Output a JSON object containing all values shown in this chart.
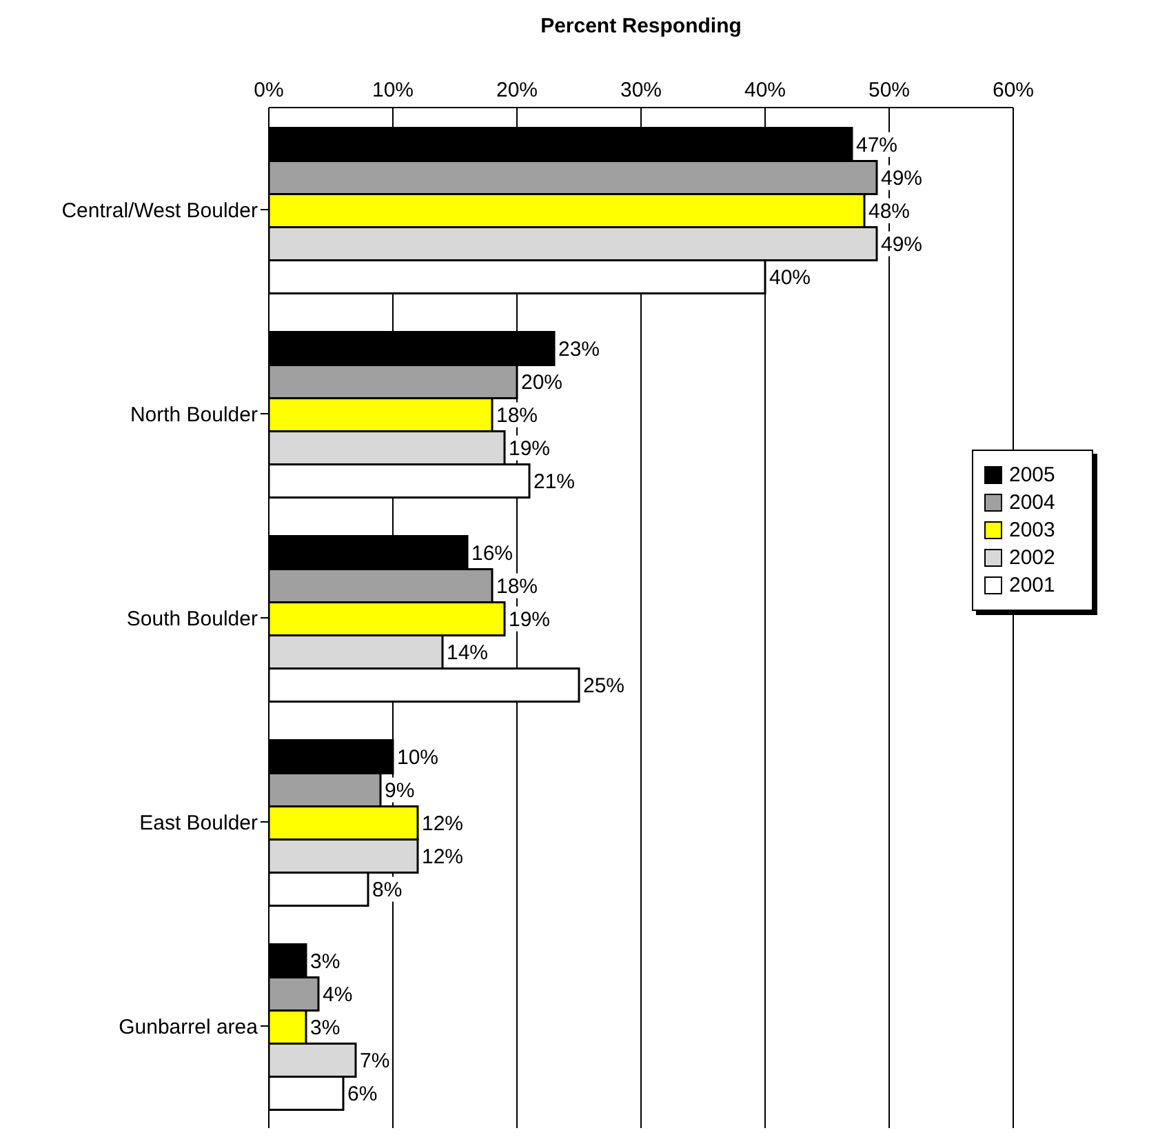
{
  "chart_data": {
    "type": "bar",
    "orientation": "horizontal",
    "xlabel": "Percent Responding",
    "categories": [
      "Central/West Boulder",
      "North Boulder",
      "South Boulder",
      "East Boulder",
      "Gunbarrel area"
    ],
    "series": [
      {
        "name": "2005",
        "color": "#000000",
        "values": [
          47,
          23,
          16,
          10,
          3
        ],
        "value_labels": [
          "47%",
          "23%",
          "16%",
          "10%",
          "3%"
        ]
      },
      {
        "name": "2004",
        "color": "#a0a0a0",
        "values": [
          49,
          20,
          18,
          9,
          4
        ],
        "value_labels": [
          "49%",
          "20%",
          "18%",
          "9%",
          "4%"
        ]
      },
      {
        "name": "2003",
        "color": "#ffff00",
        "values": [
          48,
          18,
          19,
          12,
          3
        ],
        "value_labels": [
          "48%",
          "18%",
          "19%",
          "12%",
          "3%"
        ]
      },
      {
        "name": "2002",
        "color": "#d8d8d8",
        "values": [
          49,
          19,
          14,
          12,
          7
        ],
        "value_labels": [
          "49%",
          "19%",
          "14%",
          "12%",
          "7%"
        ]
      },
      {
        "name": "2001",
        "color": "#ffffff",
        "values": [
          40,
          21,
          25,
          8,
          6
        ],
        "value_labels": [
          "40%",
          "21%",
          "25%",
          "8%",
          "6%"
        ]
      }
    ],
    "xlim": [
      0,
      60
    ],
    "xticks": [
      {
        "value": 0,
        "label": "0%"
      },
      {
        "value": 10,
        "label": "10%"
      },
      {
        "value": 20,
        "label": "20%"
      },
      {
        "value": 30,
        "label": "30%"
      },
      {
        "value": 40,
        "label": "40%"
      },
      {
        "value": 50,
        "label": "50%"
      },
      {
        "value": 60,
        "label": "60%"
      }
    ],
    "grid": "x",
    "legend": "right"
  }
}
